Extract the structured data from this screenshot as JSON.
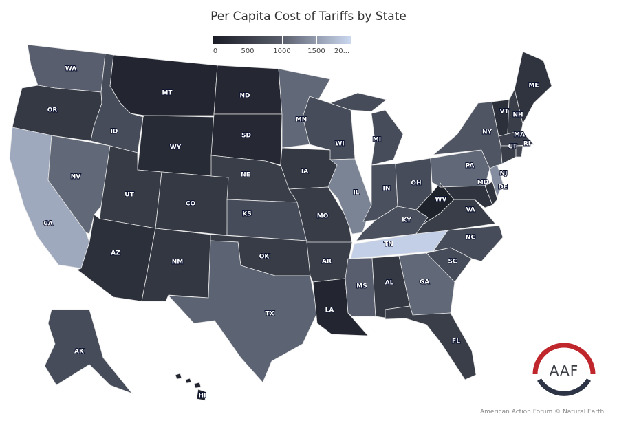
{
  "title": "Per Capita Cost of Tariffs by State",
  "legend": {
    "ticks": [
      "0",
      "500",
      "1000",
      "1500",
      "20..."
    ],
    "range": [
      0,
      2000
    ],
    "colors": {
      "low": "#1a1d26",
      "high": "#cbd8f0"
    }
  },
  "logo": {
    "text": "AAF",
    "top_color": "#c0272d",
    "bottom_color": "#2d3446"
  },
  "credit": "American Action Forum © Natural Earth",
  "states": [
    {
      "code": "WA",
      "value": 700
    },
    {
      "code": "OR",
      "value": 300
    },
    {
      "code": "CA",
      "value": 1500
    },
    {
      "code": "NV",
      "value": 800
    },
    {
      "code": "ID",
      "value": 500
    },
    {
      "code": "MT",
      "value": 100
    },
    {
      "code": "WY",
      "value": 150
    },
    {
      "code": "UT",
      "value": 320
    },
    {
      "code": "CO",
      "value": 300
    },
    {
      "code": "AZ",
      "value": 200
    },
    {
      "code": "NM",
      "value": 280
    },
    {
      "code": "ND",
      "value": 120
    },
    {
      "code": "SD",
      "value": 130
    },
    {
      "code": "NE",
      "value": 350
    },
    {
      "code": "KS",
      "value": 500
    },
    {
      "code": "OK",
      "value": 330
    },
    {
      "code": "TX",
      "value": 750
    },
    {
      "code": "MN",
      "value": 800
    },
    {
      "code": "IA",
      "value": 300
    },
    {
      "code": "MO",
      "value": 330
    },
    {
      "code": "AR",
      "value": 350
    },
    {
      "code": "LA",
      "value": 100
    },
    {
      "code": "WI",
      "value": 500
    },
    {
      "code": "IL",
      "value": 1100
    },
    {
      "code": "MI",
      "value": 500
    },
    {
      "code": "IN",
      "value": 550
    },
    {
      "code": "OH",
      "value": 500
    },
    {
      "code": "KY",
      "value": 550
    },
    {
      "code": "TN",
      "value": 1900
    },
    {
      "code": "MS",
      "value": 700
    },
    {
      "code": "AL",
      "value": 300
    },
    {
      "code": "GA",
      "value": 800
    },
    {
      "code": "FL",
      "value": 350
    },
    {
      "code": "SC",
      "value": 500
    },
    {
      "code": "NC",
      "value": 500
    },
    {
      "code": "VA",
      "value": 350
    },
    {
      "code": "WV",
      "value": 50
    },
    {
      "code": "PA",
      "value": 800
    },
    {
      "code": "NY",
      "value": 600
    },
    {
      "code": "MD",
      "value": 250
    },
    {
      "code": "DE",
      "value": 250
    },
    {
      "code": "NJ",
      "value": 1200
    },
    {
      "code": "VT",
      "value": 200
    },
    {
      "code": "NH",
      "value": 350
    },
    {
      "code": "ME",
      "value": 250
    },
    {
      "code": "MA",
      "value": 400
    },
    {
      "code": "CT",
      "value": 350
    },
    {
      "code": "RI",
      "value": 450
    },
    {
      "code": "AK",
      "value": 500
    },
    {
      "code": "HI",
      "value": 80
    }
  ]
}
